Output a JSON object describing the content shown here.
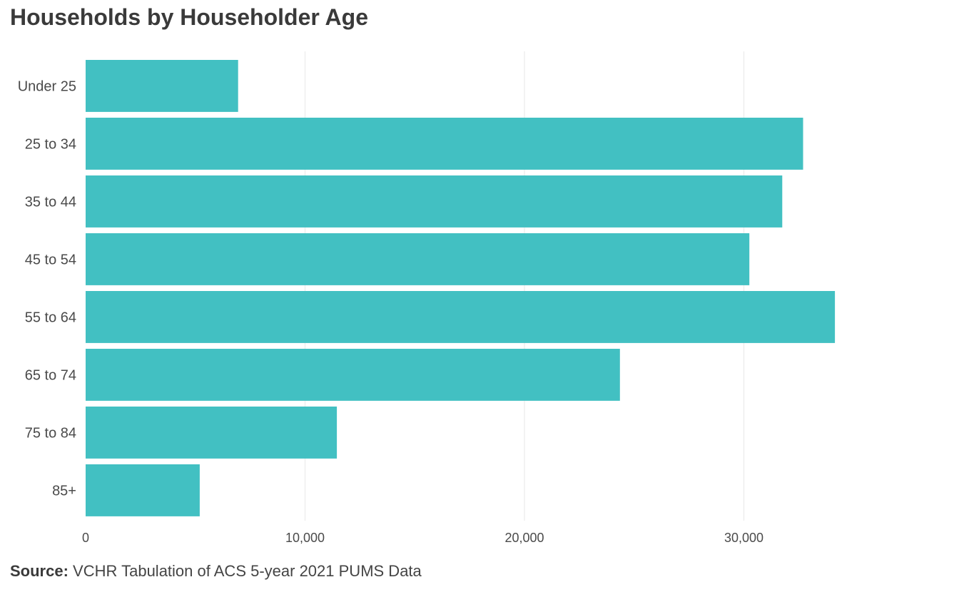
{
  "chart_data": {
    "type": "bar",
    "orientation": "horizontal",
    "title": "Households by Householder Age",
    "categories": [
      "Under 25",
      "25 to 34",
      "35 to 44",
      "45 to 54",
      "55 to 64",
      "65 to 74",
      "75 to 84",
      "85+"
    ],
    "values": [
      6950,
      32700,
      31750,
      30250,
      34150,
      24350,
      11450,
      5200
    ],
    "xlim": [
      0,
      37000
    ],
    "xticks": [
      0,
      10000,
      20000,
      30000
    ],
    "xtick_labels": [
      "0",
      "10,000",
      "20,000",
      "30,000"
    ],
    "xlabel": "",
    "ylabel": "",
    "grid": true,
    "bar_color": "#42c0c2",
    "grid_color": "#ebebeb"
  },
  "source": {
    "label": "Source:",
    "text": "VCHR Tabulation of ACS 5-year 2021 PUMS Data"
  }
}
